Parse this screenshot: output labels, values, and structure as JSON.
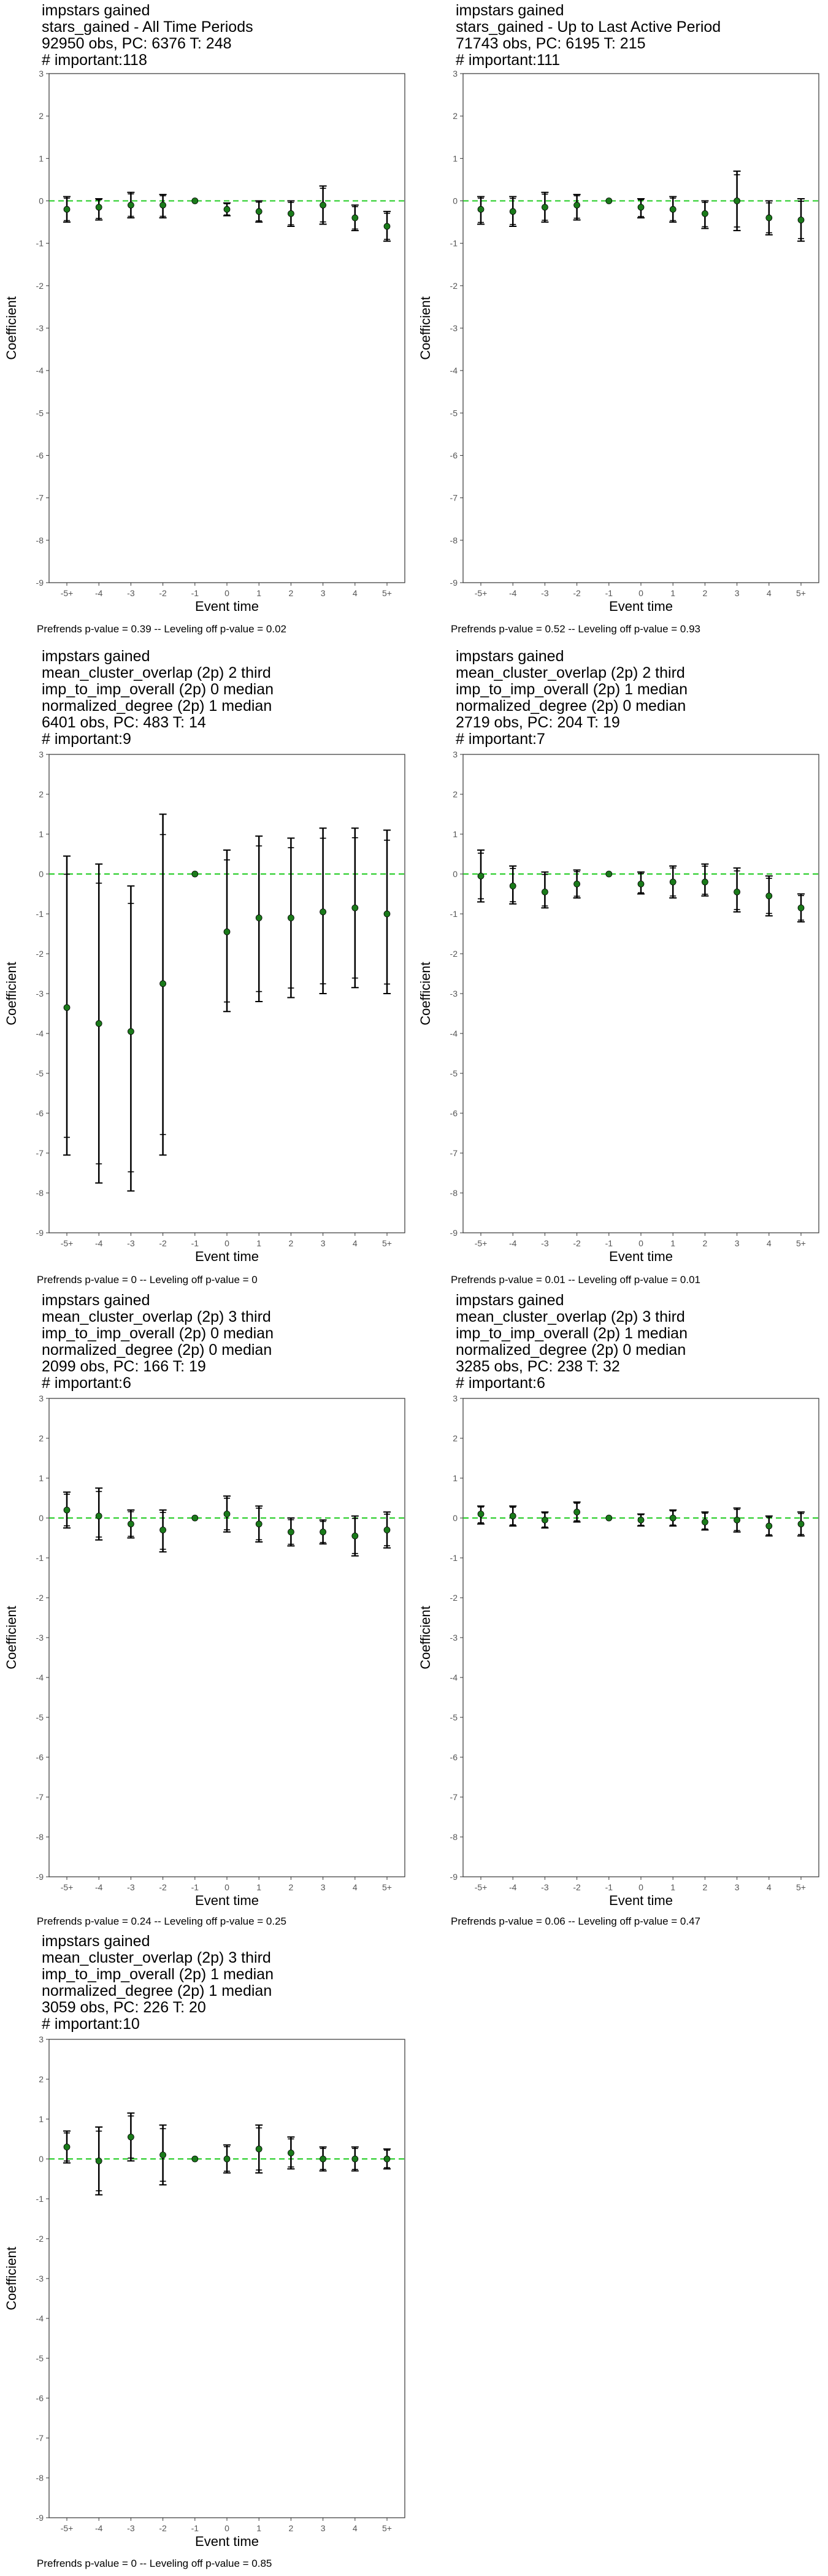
{
  "colors": {
    "zero_line": "#22cc22",
    "point": "#1a7a1a",
    "whisker": "#000000",
    "frame": "#333333",
    "tick_label": "#555555"
  },
  "chart_data": [
    {
      "type": "scatter",
      "title_lines": [
        " impstars gained",
        "stars_gained - All Time Periods",
        "92950 obs, PC: 6376 T: 248",
        "# important:118"
      ],
      "footnote": "Prefrends p-value = 0.39 -- Leveling off p-value = 0.02",
      "xlabel": "Event time",
      "ylabel": "Coefficient",
      "categories": [
        "-5+",
        "-4",
        "-3",
        "-2",
        "-1",
        "0",
        "1",
        "2",
        "3",
        "4",
        "5+"
      ],
      "ylim": [
        -9,
        3
      ],
      "yticks": [
        "3",
        "2",
        "1",
        "0",
        "-1",
        "-2",
        "-3",
        "-4",
        "-5",
        "-6",
        "-7",
        "-8",
        "-9"
      ],
      "series": [
        {
          "values": [
            -0.2,
            -0.15,
            -0.1,
            -0.1,
            0,
            -0.2,
            -0.25,
            -0.3,
            -0.1,
            -0.4,
            -0.6
          ],
          "ci95_low": [
            -0.5,
            -0.45,
            -0.4,
            -0.4,
            0,
            -0.35,
            -0.5,
            -0.6,
            -0.55,
            -0.7,
            -0.95
          ],
          "ci95_high": [
            0.1,
            0.05,
            0.2,
            0.15,
            0,
            -0.05,
            0,
            0,
            0.35,
            -0.1,
            -0.25
          ]
        }
      ]
    },
    {
      "type": "scatter",
      "title_lines": [
        " impstars gained",
        "stars_gained - Up to Last Active Period",
        "71743 obs, PC: 6195 T: 215",
        "# important:111"
      ],
      "footnote": "Prefrends p-value = 0.52 -- Leveling off p-value = 0.93",
      "xlabel": "Event time",
      "ylabel": "Coefficient",
      "categories": [
        "-5+",
        "-4",
        "-3",
        "-2",
        "-1",
        "0",
        "1",
        "2",
        "3",
        "4",
        "5+"
      ],
      "ylim": [
        -9,
        3
      ],
      "yticks": [
        "3",
        "2",
        "1",
        "0",
        "-1",
        "-2",
        "-3",
        "-4",
        "-5",
        "-6",
        "-7",
        "-8",
        "-9"
      ],
      "series": [
        {
          "values": [
            -0.2,
            -0.25,
            -0.15,
            -0.1,
            0,
            -0.15,
            -0.2,
            -0.3,
            0,
            -0.4,
            -0.45
          ],
          "ci95_low": [
            -0.55,
            -0.6,
            -0.5,
            -0.45,
            0,
            -0.4,
            -0.5,
            -0.65,
            -0.7,
            -0.8,
            -0.95
          ],
          "ci95_high": [
            0.1,
            0.1,
            0.2,
            0.15,
            0,
            0.05,
            0.1,
            0,
            0.7,
            0,
            0.05
          ]
        }
      ]
    },
    {
      "type": "scatter",
      "title_lines": [
        " impstars gained",
        "mean_cluster_overlap (2p) 2 third",
        "imp_to_imp_overall (2p) 0 median",
        "normalized_degree (2p) 1 median",
        "6401 obs, PC: 483 T: 14",
        "# important:9"
      ],
      "footnote": "Prefrends p-value = 0 -- Leveling off p-value = 0",
      "xlabel": "Event time",
      "ylabel": "Coefficient",
      "categories": [
        "-5+",
        "-4",
        "-3",
        "-2",
        "-1",
        "0",
        "1",
        "2",
        "3",
        "4",
        "5+"
      ],
      "ylim": [
        -9,
        3
      ],
      "yticks": [
        "3",
        "2",
        "1",
        "0",
        "-1",
        "-2",
        "-3",
        "-4",
        "-5",
        "-6",
        "-7",
        "-8",
        "-9"
      ],
      "series": [
        {
          "values": [
            -3.35,
            -3.75,
            -3.95,
            -2.75,
            0,
            -1.45,
            -1.1,
            -1.1,
            -0.95,
            -0.85,
            -1.0
          ],
          "ci95_low": [
            -7.05,
            -7.75,
            -7.95,
            -7.05,
            0,
            -3.45,
            -3.2,
            -3.1,
            -3.0,
            -2.85,
            -3.0
          ],
          "ci95_high": [
            0.45,
            0.25,
            -0.3,
            1.5,
            0,
            0.6,
            0.95,
            0.9,
            1.15,
            1.15,
            1.1
          ]
        }
      ]
    },
    {
      "type": "scatter",
      "title_lines": [
        " impstars gained",
        "mean_cluster_overlap (2p) 2 third",
        "imp_to_imp_overall (2p) 1 median",
        "normalized_degree (2p) 0 median",
        "2719 obs, PC: 204 T: 19",
        "# important:7"
      ],
      "footnote": "Prefrends p-value = 0.01 -- Leveling off p-value = 0.01",
      "xlabel": "Event time",
      "ylabel": "Coefficient",
      "categories": [
        "-5+",
        "-4",
        "-3",
        "-2",
        "-1",
        "0",
        "1",
        "2",
        "3",
        "4",
        "5+"
      ],
      "ylim": [
        -9,
        3
      ],
      "yticks": [
        "3",
        "2",
        "1",
        "0",
        "-1",
        "-2",
        "-3",
        "-4",
        "-5",
        "-6",
        "-7",
        "-8",
        "-9"
      ],
      "series": [
        {
          "values": [
            -0.05,
            -0.3,
            -0.45,
            -0.25,
            0,
            -0.25,
            -0.2,
            -0.2,
            -0.45,
            -0.55,
            -0.85
          ],
          "ci95_low": [
            -0.7,
            -0.75,
            -0.85,
            -0.6,
            0,
            -0.5,
            -0.6,
            -0.55,
            -0.95,
            -1.05,
            -1.2
          ],
          "ci95_high": [
            0.6,
            0.2,
            0.05,
            0.1,
            0,
            0.05,
            0.2,
            0.25,
            0.15,
            -0.05,
            -0.5
          ]
        }
      ]
    },
    {
      "type": "scatter",
      "title_lines": [
        " impstars gained",
        "mean_cluster_overlap (2p) 3 third",
        "imp_to_imp_overall (2p) 0 median",
        "normalized_degree (2p) 0 median",
        "2099 obs, PC: 166 T: 19",
        "# important:6"
      ],
      "footnote": "Prefrends p-value = 0.24 -- Leveling off p-value = 0.25",
      "xlabel": "Event time",
      "ylabel": "Coefficient",
      "categories": [
        "-5+",
        "-4",
        "-3",
        "-2",
        "-1",
        "0",
        "1",
        "2",
        "3",
        "4",
        "5+"
      ],
      "ylim": [
        -9,
        3
      ],
      "yticks": [
        "3",
        "2",
        "1",
        "0",
        "-1",
        "-2",
        "-3",
        "-4",
        "-5",
        "-6",
        "-7",
        "-8",
        "-9"
      ],
      "series": [
        {
          "values": [
            0.2,
            0.05,
            -0.15,
            -0.3,
            0,
            0.1,
            -0.15,
            -0.35,
            -0.35,
            -0.45,
            -0.3
          ],
          "ci95_low": [
            -0.25,
            -0.55,
            -0.5,
            -0.85,
            0,
            -0.35,
            -0.6,
            -0.7,
            -0.65,
            -0.95,
            -0.75
          ],
          "ci95_high": [
            0.65,
            0.75,
            0.2,
            0.2,
            0,
            0.55,
            0.3,
            0,
            -0.05,
            0.05,
            0.15
          ]
        }
      ]
    },
    {
      "type": "scatter",
      "title_lines": [
        " impstars gained",
        "mean_cluster_overlap (2p) 3 third",
        "imp_to_imp_overall (2p) 1 median",
        "normalized_degree (2p) 0 median",
        "3285 obs, PC: 238 T: 32",
        "# important:6"
      ],
      "footnote": "Prefrends p-value = 0.06 -- Leveling off p-value = 0.47",
      "xlabel": "Event time",
      "ylabel": "Coefficient",
      "categories": [
        "-5+",
        "-4",
        "-3",
        "-2",
        "-1",
        "0",
        "1",
        "2",
        "3",
        "4",
        "5+"
      ],
      "ylim": [
        -9,
        3
      ],
      "yticks": [
        "3",
        "2",
        "1",
        "0",
        "-1",
        "-2",
        "-3",
        "-4",
        "-5",
        "-6",
        "-7",
        "-8",
        "-9"
      ],
      "series": [
        {
          "values": [
            0.1,
            0.05,
            -0.05,
            0.15,
            0,
            -0.05,
            0.0,
            -0.1,
            -0.05,
            -0.2,
            -0.15
          ],
          "ci95_low": [
            -0.15,
            -0.2,
            -0.25,
            -0.1,
            0,
            -0.2,
            -0.2,
            -0.3,
            -0.35,
            -0.45,
            -0.45
          ],
          "ci95_high": [
            0.3,
            0.3,
            0.15,
            0.4,
            0,
            0.1,
            0.2,
            0.15,
            0.25,
            0.05,
            0.15
          ]
        }
      ]
    },
    {
      "type": "scatter",
      "title_lines": [
        " impstars gained",
        "mean_cluster_overlap (2p) 3 third",
        "imp_to_imp_overall (2p) 1 median",
        "normalized_degree (2p) 1 median",
        "3059 obs, PC: 226 T: 20",
        "# important:10"
      ],
      "footnote": "Prefrends p-value = 0 -- Leveling off p-value = 0.85",
      "xlabel": "Event time",
      "ylabel": "Coefficient",
      "categories": [
        "-5+",
        "-4",
        "-3",
        "-2",
        "-1",
        "0",
        "1",
        "2",
        "3",
        "4",
        "5+"
      ],
      "ylim": [
        -9,
        3
      ],
      "yticks": [
        "3",
        "2",
        "1",
        "0",
        "-1",
        "-2",
        "-3",
        "-4",
        "-5",
        "-6",
        "-7",
        "-8",
        "-9"
      ],
      "series": [
        {
          "values": [
            0.3,
            -0.05,
            0.55,
            0.1,
            0,
            0.0,
            0.25,
            0.15,
            0.0,
            0.0,
            0.0
          ],
          "ci95_low": [
            -0.1,
            -0.9,
            -0.05,
            -0.65,
            0,
            -0.35,
            -0.35,
            -0.25,
            -0.3,
            -0.3,
            -0.25
          ],
          "ci95_high": [
            0.7,
            0.8,
            1.15,
            0.85,
            0,
            0.35,
            0.85,
            0.55,
            0.3,
            0.3,
            0.25
          ]
        }
      ]
    }
  ]
}
